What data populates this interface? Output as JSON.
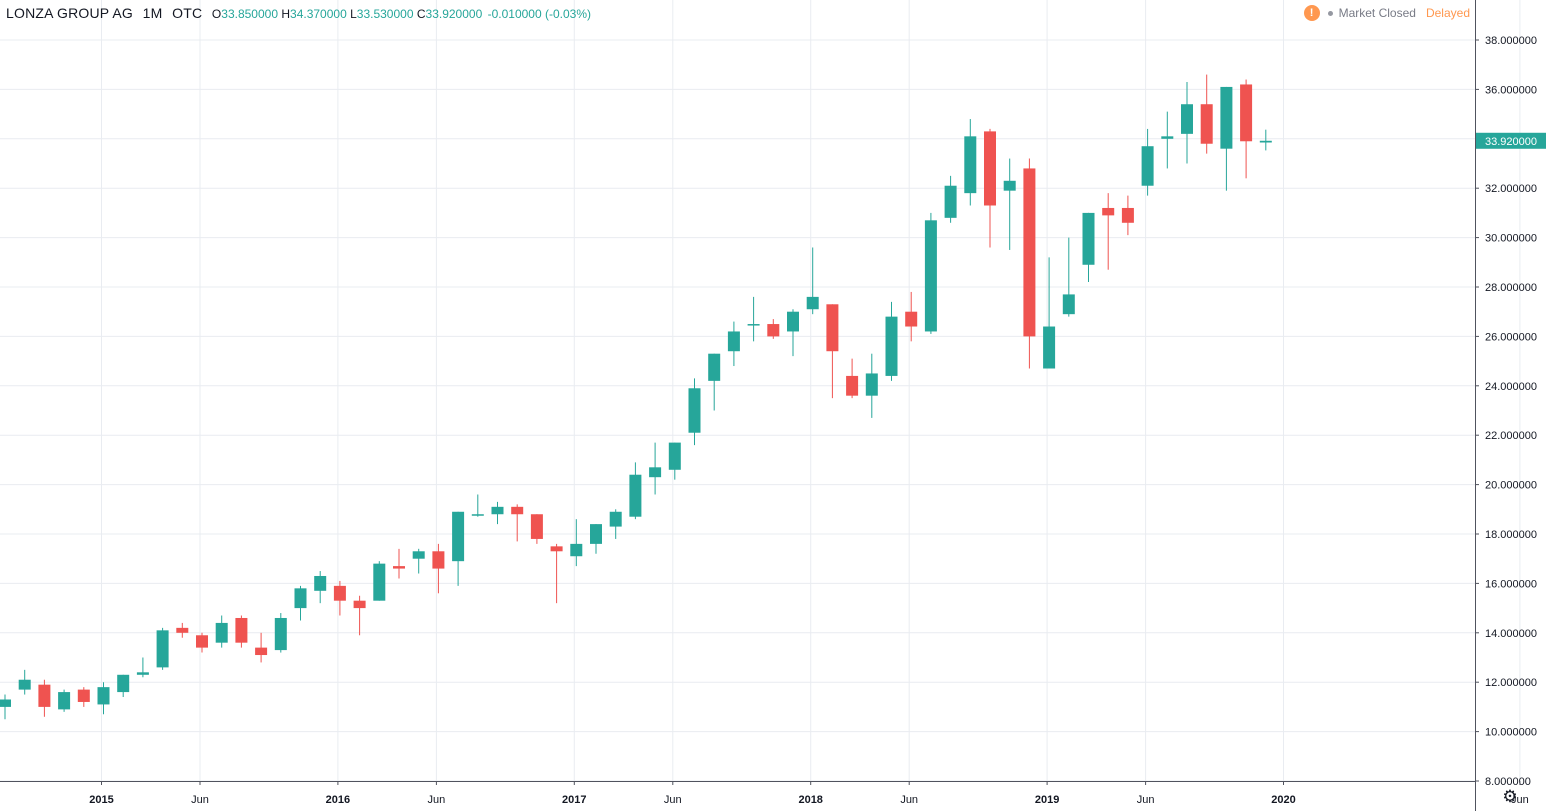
{
  "legend": {
    "symbol": "LONZA GROUP AG",
    "interval": "1M",
    "exchange": "OTC",
    "open_label": "O",
    "open": "33.850000",
    "high_label": "H",
    "high": "34.370000",
    "low_label": "L",
    "low": "33.530000",
    "close_label": "C",
    "close": "33.920000",
    "change": "-0.010000 (-0.03%)"
  },
  "status": {
    "alert_icon": "!",
    "market": "Market Closed",
    "delayed": "Delayed"
  },
  "colors": {
    "up": "#26a69a",
    "down": "#ef5350",
    "grid": "#e9ecf1",
    "axis_text": "#131722",
    "last_price_bg": "#26a69a",
    "status_orange": "#ff9850"
  },
  "chart_data": {
    "type": "candlestick",
    "y_range": [
      8,
      39
    ],
    "y_ticks": [
      "8.000000",
      "10.000000",
      "12.000000",
      "14.000000",
      "16.000000",
      "18.000000",
      "20.000000",
      "22.000000",
      "24.000000",
      "26.000000",
      "28.000000",
      "30.000000",
      "32.000000",
      "34.000000",
      "36.000000",
      "38.000000"
    ],
    "x_ticks": [
      "2015",
      "Jun",
      "2016",
      "Jun",
      "2017",
      "Jun",
      "2018",
      "Jun",
      "2019",
      "Jun",
      "2020",
      "Jun"
    ],
    "last_price": "33.920000",
    "candles": [
      {
        "o": 11.0,
        "h": 11.5,
        "l": 10.5,
        "c": 11.3
      },
      {
        "o": 11.7,
        "h": 12.5,
        "l": 11.5,
        "c": 12.1
      },
      {
        "o": 11.9,
        "h": 12.1,
        "l": 10.6,
        "c": 11.0
      },
      {
        "o": 10.9,
        "h": 11.7,
        "l": 10.8,
        "c": 11.6
      },
      {
        "o": 11.7,
        "h": 11.8,
        "l": 11.0,
        "c": 11.2
      },
      {
        "o": 11.1,
        "h": 12.0,
        "l": 10.7,
        "c": 11.8
      },
      {
        "o": 11.6,
        "h": 12.3,
        "l": 11.4,
        "c": 12.3
      },
      {
        "o": 12.3,
        "h": 13.0,
        "l": 12.2,
        "c": 12.4
      },
      {
        "o": 12.6,
        "h": 14.2,
        "l": 12.5,
        "c": 14.1
      },
      {
        "o": 14.2,
        "h": 14.4,
        "l": 13.8,
        "c": 14.0
      },
      {
        "o": 13.9,
        "h": 14.0,
        "l": 13.2,
        "c": 13.4
      },
      {
        "o": 13.6,
        "h": 14.7,
        "l": 13.4,
        "c": 14.4
      },
      {
        "o": 14.6,
        "h": 14.7,
        "l": 13.4,
        "c": 13.6
      },
      {
        "o": 13.4,
        "h": 14.0,
        "l": 12.8,
        "c": 13.1
      },
      {
        "o": 13.3,
        "h": 14.8,
        "l": 13.2,
        "c": 14.6
      },
      {
        "o": 15.0,
        "h": 15.9,
        "l": 14.5,
        "c": 15.8
      },
      {
        "o": 15.7,
        "h": 16.5,
        "l": 15.2,
        "c": 16.3
      },
      {
        "o": 15.9,
        "h": 16.1,
        "l": 14.7,
        "c": 15.3
      },
      {
        "o": 15.3,
        "h": 15.5,
        "l": 13.9,
        "c": 15.0
      },
      {
        "o": 15.3,
        "h": 16.9,
        "l": 15.3,
        "c": 16.8
      },
      {
        "o": 16.7,
        "h": 17.4,
        "l": 16.2,
        "c": 16.6
      },
      {
        "o": 17.0,
        "h": 17.4,
        "l": 16.4,
        "c": 17.3
      },
      {
        "o": 17.3,
        "h": 17.6,
        "l": 15.6,
        "c": 16.6
      },
      {
        "o": 16.9,
        "h": 18.9,
        "l": 15.9,
        "c": 18.9
      },
      {
        "o": 18.8,
        "h": 19.6,
        "l": 18.7,
        "c": 18.8
      },
      {
        "o": 18.8,
        "h": 19.3,
        "l": 18.4,
        "c": 19.1
      },
      {
        "o": 19.1,
        "h": 19.2,
        "l": 17.7,
        "c": 18.8
      },
      {
        "o": 18.8,
        "h": 18.8,
        "l": 17.6,
        "c": 17.8
      },
      {
        "o": 17.5,
        "h": 17.6,
        "l": 15.2,
        "c": 17.3
      },
      {
        "o": 17.1,
        "h": 18.6,
        "l": 16.7,
        "c": 17.6
      },
      {
        "o": 17.6,
        "h": 18.4,
        "l": 17.2,
        "c": 18.4
      },
      {
        "o": 18.3,
        "h": 19.0,
        "l": 17.8,
        "c": 18.9
      },
      {
        "o": 18.7,
        "h": 20.9,
        "l": 18.6,
        "c": 20.4
      },
      {
        "o": 20.3,
        "h": 21.7,
        "l": 19.6,
        "c": 20.7
      },
      {
        "o": 20.6,
        "h": 21.7,
        "l": 20.2,
        "c": 21.7
      },
      {
        "o": 22.1,
        "h": 24.3,
        "l": 21.6,
        "c": 23.9
      },
      {
        "o": 24.2,
        "h": 25.3,
        "l": 23.0,
        "c": 25.3
      },
      {
        "o": 25.4,
        "h": 26.6,
        "l": 24.8,
        "c": 26.2
      },
      {
        "o": 26.5,
        "h": 27.6,
        "l": 25.8,
        "c": 26.5
      },
      {
        "o": 26.5,
        "h": 26.7,
        "l": 25.9,
        "c": 26.0
      },
      {
        "o": 26.2,
        "h": 27.1,
        "l": 25.2,
        "c": 27.0
      },
      {
        "o": 27.1,
        "h": 29.6,
        "l": 26.9,
        "c": 27.6
      },
      {
        "o": 27.3,
        "h": 27.3,
        "l": 23.5,
        "c": 25.4
      },
      {
        "o": 24.4,
        "h": 25.1,
        "l": 23.5,
        "c": 23.6
      },
      {
        "o": 23.6,
        "h": 25.3,
        "l": 22.7,
        "c": 24.5
      },
      {
        "o": 24.4,
        "h": 27.4,
        "l": 24.2,
        "c": 26.8
      },
      {
        "o": 27.0,
        "h": 27.8,
        "l": 25.8,
        "c": 26.4
      },
      {
        "o": 26.2,
        "h": 31.0,
        "l": 26.1,
        "c": 30.7
      },
      {
        "o": 30.8,
        "h": 32.5,
        "l": 30.6,
        "c": 32.1
      },
      {
        "o": 31.8,
        "h": 34.8,
        "l": 31.3,
        "c": 34.1
      },
      {
        "o": 34.3,
        "h": 34.4,
        "l": 29.6,
        "c": 31.3
      },
      {
        "o": 31.9,
        "h": 33.2,
        "l": 29.5,
        "c": 32.3
      },
      {
        "o": 32.8,
        "h": 33.2,
        "l": 24.7,
        "c": 26.0
      },
      {
        "o": 24.7,
        "h": 29.2,
        "l": 24.7,
        "c": 26.4
      },
      {
        "o": 26.9,
        "h": 30.0,
        "l": 26.8,
        "c": 27.7
      },
      {
        "o": 28.9,
        "h": 31.0,
        "l": 28.2,
        "c": 31.0
      },
      {
        "o": 31.2,
        "h": 31.8,
        "l": 28.7,
        "c": 30.9
      },
      {
        "o": 31.2,
        "h": 31.7,
        "l": 30.1,
        "c": 30.6
      },
      {
        "o": 32.1,
        "h": 34.4,
        "l": 31.7,
        "c": 33.7
      },
      {
        "o": 34.0,
        "h": 35.1,
        "l": 32.8,
        "c": 34.1
      },
      {
        "o": 34.2,
        "h": 36.3,
        "l": 33.0,
        "c": 35.4
      },
      {
        "o": 35.4,
        "h": 36.6,
        "l": 33.4,
        "c": 33.8
      },
      {
        "o": 33.6,
        "h": 36.1,
        "l": 31.9,
        "c": 36.1
      },
      {
        "o": 36.2,
        "h": 36.4,
        "l": 32.4,
        "c": 33.9
      },
      {
        "o": 33.85,
        "h": 34.37,
        "l": 33.53,
        "c": 33.92
      }
    ]
  }
}
